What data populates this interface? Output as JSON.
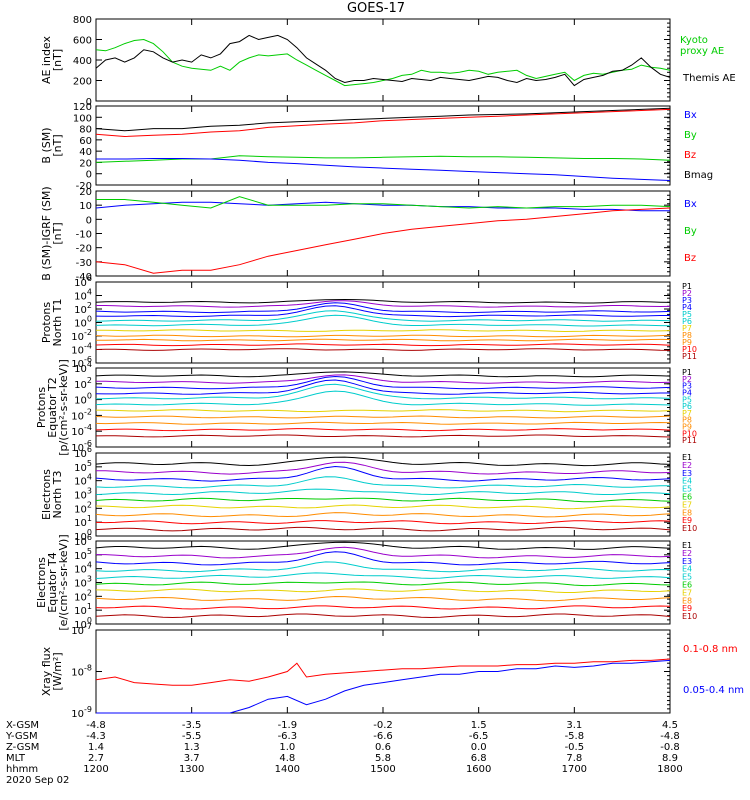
{
  "title": "GOES-17",
  "colors": {
    "black": "#000000",
    "red": "#ff0000",
    "green": "#00cc00",
    "blue": "#0000ff",
    "orange": "#ff8c00",
    "yellow": "#e6d200",
    "cyan": "#00cccc",
    "purple": "#9900cc",
    "darkred": "#aa0000"
  },
  "chart_data": [
    {
      "id": "ae",
      "type": "line",
      "ylabel": [
        "AE index",
        "[nT]"
      ],
      "yscale": "linear",
      "ylim": [
        0,
        800
      ],
      "yticks": [
        "0",
        "200",
        "400",
        "600",
        "800"
      ],
      "legend": [
        "Kyoto",
        "proxy AE",
        "Themis AE"
      ],
      "series": [
        {
          "name": "Kyoto proxy AE",
          "color": "green",
          "x": [
            1200,
            1210,
            1220,
            1230,
            1240,
            1250,
            1260,
            1270,
            1280,
            1290,
            1300,
            1310,
            1320,
            1330,
            1340,
            1350,
            1360,
            1370,
            1380,
            1390,
            1400,
            1410,
            1420,
            1430,
            1440,
            1450,
            1460,
            1470,
            1480,
            1490,
            1500,
            1510,
            1520,
            1530,
            1540,
            1550,
            1560,
            1570,
            1580,
            1590,
            1600,
            1610,
            1620,
            1630,
            1640,
            1650,
            1660,
            1670,
            1680,
            1690,
            1700,
            1710,
            1720,
            1730,
            1740,
            1750,
            1760,
            1770,
            1780,
            1790,
            1800
          ],
          "y": [
            500,
            490,
            520,
            560,
            590,
            600,
            560,
            480,
            380,
            340,
            320,
            310,
            300,
            340,
            300,
            380,
            420,
            450,
            440,
            450,
            460,
            400,
            350,
            300,
            250,
            200,
            150,
            160,
            170,
            180,
            200,
            220,
            250,
            260,
            300,
            280,
            280,
            270,
            280,
            300,
            290,
            260,
            280,
            290,
            300,
            250,
            220,
            240,
            260,
            280,
            200,
            250,
            270,
            260,
            280,
            300,
            310,
            350,
            330,
            320,
            300
          ]
        },
        {
          "name": "Themis AE",
          "color": "black",
          "x": [
            1200,
            1210,
            1220,
            1230,
            1240,
            1250,
            1260,
            1270,
            1280,
            1290,
            1300,
            1310,
            1320,
            1330,
            1340,
            1350,
            1360,
            1370,
            1380,
            1390,
            1400,
            1410,
            1420,
            1430,
            1440,
            1450,
            1460,
            1470,
            1480,
            1490,
            1500,
            1510,
            1520,
            1530,
            1540,
            1550,
            1560,
            1570,
            1580,
            1590,
            1600,
            1610,
            1620,
            1630,
            1640,
            1650,
            1660,
            1670,
            1680,
            1690,
            1700,
            1710,
            1720,
            1730,
            1740,
            1750,
            1760,
            1770,
            1780,
            1790,
            1800
          ],
          "y": [
            320,
            400,
            420,
            380,
            420,
            500,
            480,
            420,
            380,
            400,
            380,
            450,
            420,
            460,
            560,
            580,
            640,
            600,
            620,
            640,
            600,
            520,
            420,
            360,
            300,
            220,
            180,
            200,
            200,
            220,
            210,
            200,
            190,
            220,
            210,
            200,
            230,
            220,
            210,
            200,
            220,
            240,
            230,
            200,
            180,
            220,
            200,
            210,
            230,
            260,
            150,
            210,
            230,
            250,
            290,
            300,
            350,
            420,
            330,
            260,
            230
          ]
        }
      ]
    },
    {
      "id": "bsm",
      "type": "line",
      "ylabel": [
        "B (SM)",
        "[nT]"
      ],
      "yscale": "linear",
      "ylim": [
        -20,
        120
      ],
      "yticks": [
        "-20",
        "0",
        "20",
        "40",
        "60",
        "80",
        "100",
        "120"
      ],
      "legend": [
        "Bx",
        "By",
        "Bz",
        "Bmag"
      ],
      "series": [
        {
          "name": "Bmag",
          "color": "black",
          "x": [
            1200,
            1230,
            1260,
            1290,
            1320,
            1350,
            1380,
            1410,
            1440,
            1470,
            1500,
            1530,
            1560,
            1590,
            1620,
            1650,
            1680,
            1710,
            1740,
            1770,
            1800
          ],
          "y": [
            80,
            76,
            80,
            80,
            84,
            86,
            90,
            92,
            94,
            96,
            98,
            100,
            102,
            104,
            105,
            106,
            108,
            110,
            112,
            114,
            116
          ]
        },
        {
          "name": "Bz",
          "color": "red",
          "x": [
            1200,
            1230,
            1260,
            1290,
            1320,
            1350,
            1380,
            1410,
            1440,
            1470,
            1500,
            1530,
            1560,
            1590,
            1620,
            1650,
            1680,
            1710,
            1740,
            1770,
            1800
          ],
          "y": [
            70,
            66,
            68,
            70,
            74,
            76,
            82,
            85,
            88,
            90,
            94,
            96,
            98,
            100,
            102,
            104,
            106,
            108,
            110,
            112,
            114
          ]
        },
        {
          "name": "By",
          "color": "green",
          "x": [
            1200,
            1230,
            1260,
            1290,
            1320,
            1350,
            1380,
            1410,
            1440,
            1470,
            1500,
            1530,
            1560,
            1590,
            1620,
            1650,
            1680,
            1710,
            1740,
            1770,
            1800
          ],
          "y": [
            20,
            22,
            24,
            26,
            26,
            32,
            30,
            29,
            28,
            28,
            29,
            30,
            31,
            30,
            30,
            29,
            28,
            27,
            27,
            26,
            24
          ]
        },
        {
          "name": "Bx",
          "color": "blue",
          "x": [
            1200,
            1230,
            1260,
            1290,
            1320,
            1350,
            1380,
            1410,
            1440,
            1470,
            1500,
            1530,
            1560,
            1590,
            1620,
            1650,
            1680,
            1710,
            1740,
            1770,
            1800
          ],
          "y": [
            26,
            26,
            27,
            27,
            26,
            24,
            20,
            18,
            15,
            12,
            10,
            8,
            6,
            4,
            2,
            0,
            -2,
            -5,
            -8,
            -10,
            -12
          ]
        }
      ]
    },
    {
      "id": "bdiff",
      "type": "line",
      "ylabel": [
        "B (SM)-IGRF (SM)",
        "[nT]"
      ],
      "yscale": "linear",
      "ylim": [
        -40,
        20
      ],
      "yticks": [
        "-40",
        "-30",
        "-20",
        "-10",
        "0",
        "10",
        "20"
      ],
      "legend": [
        "Bx",
        "By",
        "Bz"
      ],
      "series": [
        {
          "name": "Bx",
          "color": "blue",
          "x": [
            1200,
            1230,
            1260,
            1290,
            1320,
            1350,
            1380,
            1410,
            1440,
            1470,
            1500,
            1530,
            1560,
            1590,
            1620,
            1650,
            1680,
            1710,
            1740,
            1770,
            1800
          ],
          "y": [
            8,
            10,
            11,
            12,
            12,
            11,
            10,
            11,
            12,
            11,
            10,
            10,
            9,
            9,
            8,
            8,
            8,
            7,
            7,
            6,
            6
          ]
        },
        {
          "name": "By",
          "color": "green",
          "x": [
            1200,
            1230,
            1260,
            1290,
            1320,
            1350,
            1380,
            1410,
            1440,
            1470,
            1500,
            1530,
            1560,
            1590,
            1620,
            1650,
            1680,
            1710,
            1740,
            1770,
            1800
          ],
          "y": [
            14,
            14,
            12,
            10,
            8,
            16,
            10,
            10,
            10,
            11,
            11,
            10,
            9,
            8,
            9,
            8,
            9,
            9,
            10,
            10,
            9
          ]
        },
        {
          "name": "Bz",
          "color": "red",
          "x": [
            1200,
            1230,
            1260,
            1290,
            1320,
            1350,
            1380,
            1410,
            1440,
            1470,
            1500,
            1530,
            1560,
            1590,
            1620,
            1650,
            1680,
            1710,
            1740,
            1770,
            1800
          ],
          "y": [
            -30,
            -32,
            -38,
            -36,
            -36,
            -32,
            -26,
            -22,
            -18,
            -14,
            -10,
            -7,
            -5,
            -3,
            -1,
            0,
            2,
            4,
            6,
            7,
            8
          ]
        }
      ]
    },
    {
      "id": "pn",
      "type": "line",
      "ylabel": [
        "Protons",
        "North T1"
      ],
      "yscale": "log",
      "ylim": [
        -6,
        6
      ],
      "yticks": [
        "10^-6",
        "10^-4",
        "10^-2",
        "10^0",
        "10^2",
        "10^4",
        "10^6"
      ],
      "legend": [
        "P1",
        "P2",
        "P3",
        "P4",
        "P5",
        "P6",
        "P7",
        "P8",
        "P9",
        "P10",
        "P11"
      ],
      "legend_colors": [
        "black",
        "purple",
        "blue",
        "blue",
        "cyan",
        "cyan",
        "yellow",
        "orange",
        "orange",
        "red",
        "darkred"
      ],
      "base": [
        3,
        2.4,
        1.6,
        1,
        0.3,
        -0.4,
        -1.2,
        -2,
        -2.6,
        -3.3,
        -4
      ],
      "bump": [
        0.5,
        0.8,
        1.2,
        1.4,
        1.5,
        1.6,
        0,
        0,
        0,
        0,
        0
      ]
    },
    {
      "id": "pe",
      "type": "line",
      "ylabel": [
        "Protons",
        "Equator T2",
        "[p/(cm²-s-sr-keV)]"
      ],
      "yscale": "log",
      "ylim": [
        -6,
        4
      ],
      "yticks": [
        "10^-6",
        "10^-4",
        "10^-2",
        "10^0",
        "10^2",
        "10^4"
      ],
      "legend": [
        "P1",
        "P2",
        "P3",
        "P4",
        "P5",
        "P6",
        "P7",
        "P8",
        "P9",
        "P10",
        "P11"
      ],
      "legend_colors": [
        "black",
        "purple",
        "blue",
        "blue",
        "cyan",
        "cyan",
        "yellow",
        "orange",
        "orange",
        "red",
        "darkred"
      ],
      "base": [
        3,
        2.2,
        1.5,
        0.8,
        0.2,
        -0.6,
        -1.4,
        -2.2,
        -3,
        -3.8,
        -4.6
      ],
      "bump": [
        0.6,
        0.9,
        1.3,
        1.6,
        1.8,
        1.8,
        0,
        0,
        0,
        0,
        0
      ]
    },
    {
      "id": "en",
      "type": "line",
      "ylabel": [
        "Electrons",
        "North T3"
      ],
      "yscale": "log",
      "ylim": [
        0,
        6
      ],
      "yticks": [
        "10^0",
        "10^1",
        "10^2",
        "10^3",
        "10^4",
        "10^5",
        "10^6"
      ],
      "legend": [
        "E1",
        "E2",
        "E3",
        "E4",
        "E5",
        "E6",
        "E7",
        "E8",
        "E9",
        "E10"
      ],
      "legend_colors": [
        "black",
        "purple",
        "blue",
        "cyan",
        "cyan",
        "green",
        "yellow",
        "orange",
        "red",
        "darkred"
      ],
      "base": [
        5.2,
        4.6,
        4.1,
        3.6,
        3.1,
        2.6,
        2.1,
        1.5,
        1.0,
        0.5
      ],
      "bump": [
        0.6,
        0.7,
        0.8,
        0.6,
        0.3,
        0.2,
        0.1,
        0.1,
        0,
        0
      ]
    },
    {
      "id": "ee",
      "type": "line",
      "ylabel": [
        "Electrons",
        "Equator T4",
        "[e/(cm²-s-sr-keV)]"
      ],
      "yscale": "log",
      "ylim": [
        0,
        6
      ],
      "yticks": [
        "10^0",
        "10^1",
        "10^2",
        "10^3",
        "10^4",
        "10^5",
        "10^6"
      ],
      "legend": [
        "E1",
        "E2",
        "E3",
        "E4",
        "E5",
        "E6",
        "E7",
        "E8",
        "E9",
        "E10"
      ],
      "legend_colors": [
        "black",
        "purple",
        "blue",
        "cyan",
        "cyan",
        "green",
        "yellow",
        "orange",
        "red",
        "darkred"
      ],
      "base": [
        5.5,
        4.9,
        4.4,
        3.9,
        3.4,
        2.9,
        2.4,
        1.8,
        1.2,
        0.6
      ],
      "bump": [
        0.5,
        0.6,
        0.7,
        0.5,
        0.3,
        0.2,
        0.1,
        0.1,
        0,
        0
      ]
    },
    {
      "id": "xray",
      "type": "line",
      "ylabel": [
        "Xray flux",
        "[W/m²]"
      ],
      "yscale": "log",
      "ylim": [
        -9,
        -6
      ],
      "yticks": [
        "10^-9",
        "10^-8",
        "10^-7"
      ],
      "legend": [
        "0.1-0.8 nm",
        "0.05-0.4 nm"
      ],
      "series": [
        {
          "name": "0.1-0.8 nm",
          "color": "red",
          "x": [
            1200,
            1220,
            1240,
            1260,
            1280,
            1300,
            1320,
            1340,
            1360,
            1380,
            1400,
            1410,
            1420,
            1440,
            1460,
            1480,
            1500,
            1520,
            1540,
            1560,
            1580,
            1600,
            1620,
            1640,
            1660,
            1680,
            1700,
            1720,
            1740,
            1760,
            1780,
            1800
          ],
          "y": [
            -7.8,
            -7.7,
            -7.9,
            -7.95,
            -8.0,
            -8.0,
            -7.9,
            -7.8,
            -7.85,
            -7.7,
            -7.5,
            -7.2,
            -7.7,
            -7.6,
            -7.55,
            -7.5,
            -7.45,
            -7.4,
            -7.4,
            -7.35,
            -7.3,
            -7.3,
            -7.3,
            -7.25,
            -7.25,
            -7.2,
            -7.2,
            -7.15,
            -7.15,
            -7.1,
            -7.1,
            -7.05
          ]
        },
        {
          "name": "0.05-0.4 nm",
          "color": "blue",
          "x": [
            1200,
            1220,
            1240,
            1260,
            1280,
            1300,
            1320,
            1340,
            1360,
            1380,
            1400,
            1420,
            1440,
            1460,
            1480,
            1500,
            1520,
            1540,
            1560,
            1580,
            1600,
            1620,
            1640,
            1660,
            1680,
            1700,
            1720,
            1740,
            1760,
            1780,
            1800
          ],
          "y": [
            -9,
            -9,
            -9,
            -9,
            -9,
            -9,
            -9,
            -9,
            -8.8,
            -8.5,
            -8.4,
            -8.7,
            -8.5,
            -8.2,
            -8.0,
            -7.9,
            -7.8,
            -7.7,
            -7.6,
            -7.6,
            -7.5,
            -7.5,
            -7.4,
            -7.4,
            -7.3,
            -7.35,
            -7.3,
            -7.2,
            -7.2,
            -7.15,
            -7.1
          ]
        }
      ]
    }
  ],
  "axis": {
    "row_labels": [
      "X-GSM",
      "Y-GSM",
      "Z-GSM",
      "MLT",
      "hhmm",
      "2020 Sep 02"
    ],
    "x": [
      1200,
      1300,
      1400,
      1500,
      1600,
      1700,
      1800
    ],
    "columns": [
      [
        "-4.8",
        "-4.3",
        "1.4",
        "2.7",
        "1200"
      ],
      [
        "-3.5",
        "-5.5",
        "1.3",
        "3.7",
        "1300"
      ],
      [
        "-1.9",
        "-6.3",
        "1.0",
        "4.8",
        "1400"
      ],
      [
        "-0.2",
        "-6.6",
        "0.6",
        "5.8",
        "1500"
      ],
      [
        "1.5",
        "-6.5",
        "0.0",
        "6.8",
        "1600"
      ],
      [
        "3.1",
        "-5.8",
        "-0.5",
        "7.8",
        "1700"
      ],
      [
        "4.5",
        "-4.8",
        "-0.8",
        "8.9",
        "1800"
      ]
    ]
  }
}
